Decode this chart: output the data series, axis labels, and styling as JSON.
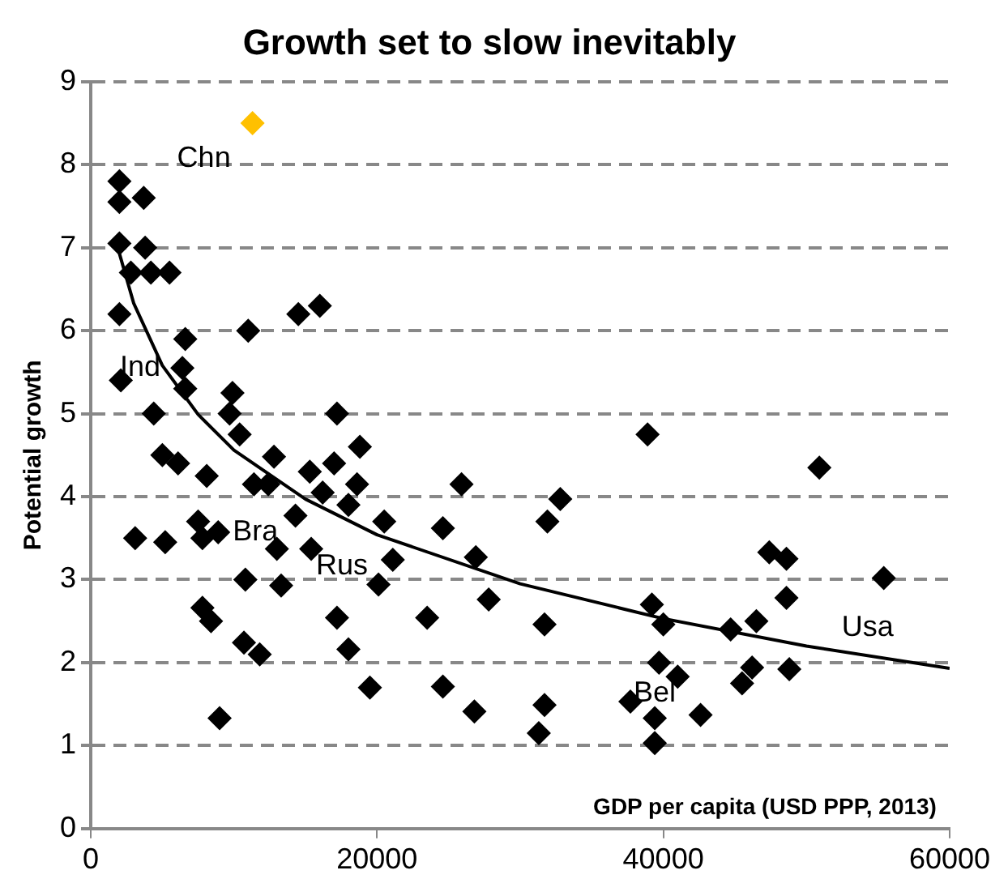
{
  "chart_data": {
    "type": "scatter",
    "title": "Growth set to slow inevitably",
    "xlabel": "GDP per capita (USD PPP, 2013)",
    "ylabel": "Potential growth",
    "xlim": [
      0,
      60000
    ],
    "xticks": [
      0,
      20000,
      40000,
      60000
    ],
    "ylim": [
      0,
      9
    ],
    "yticks": [
      0,
      1,
      2,
      3,
      4,
      5,
      6,
      7,
      8,
      9
    ],
    "grid": "y",
    "legend": false,
    "marker": "diamond",
    "annotations": [
      {
        "text": "Chn",
        "x": 11300,
        "y": 8.5
      },
      {
        "text": "Ind",
        "x": 2100,
        "y": 5.4
      },
      {
        "text": "Bra",
        "x": 8900,
        "y": 3.57
      },
      {
        "text": "Rus",
        "x": 15400,
        "y": 3.37
      },
      {
        "text": "Usa",
        "x": 55400,
        "y": 3.02
      },
      {
        "text": "Bel",
        "x": 39400,
        "y": 1.33
      }
    ],
    "series": [
      {
        "type": "scatter",
        "color": "#000000",
        "x": [
          2000,
          2000,
          3700,
          2000,
          3800,
          2800,
          4200,
          5500,
          2000,
          11000,
          14500,
          16000,
          6600,
          2100,
          6400,
          6600,
          9900,
          4400,
          9700,
          17200,
          10400,
          18800,
          5000,
          6100,
          12800,
          8100,
          15300,
          17000,
          11400,
          12400,
          18600,
          16200,
          18000,
          14300,
          3100,
          5200,
          7500,
          7800,
          8900,
          13000,
          15400,
          10800,
          13300,
          7800,
          8400,
          17200,
          10700,
          11800,
          18000,
          19500,
          9000,
          20100,
          25900,
          32800,
          31900,
          20500,
          24600,
          21100,
          26900,
          27800,
          23500,
          31700,
          38900,
          24600,
          26800,
          31700,
          31300,
          37700,
          50900,
          47400,
          48600,
          55400,
          48600,
          39200,
          40000,
          44700,
          46500,
          39700,
          41000,
          46200,
          45500,
          48800,
          39400,
          42600,
          39400
        ],
        "values": [
          7.8,
          7.55,
          7.6,
          7.05,
          7.0,
          6.7,
          6.7,
          6.7,
          6.2,
          6.0,
          6.2,
          6.3,
          5.9,
          5.4,
          5.55,
          5.3,
          5.25,
          5.0,
          5.0,
          5.0,
          4.75,
          4.6,
          4.5,
          4.4,
          4.48,
          4.25,
          4.3,
          4.4,
          4.15,
          4.15,
          4.15,
          4.05,
          3.9,
          3.77,
          3.5,
          3.45,
          3.7,
          3.5,
          3.57,
          3.37,
          3.37,
          3.0,
          2.93,
          2.66,
          2.5,
          2.54,
          2.24,
          2.1,
          2.16,
          1.7,
          1.33,
          2.94,
          4.15,
          3.97,
          3.7,
          3.7,
          3.62,
          3.24,
          3.27,
          2.76,
          2.54,
          2.46,
          4.75,
          1.71,
          1.41,
          1.49,
          1.15,
          1.53,
          4.35,
          3.33,
          3.25,
          3.02,
          2.78,
          2.7,
          2.46,
          2.4,
          2.5,
          2.0,
          1.83,
          1.94,
          1.75,
          1.92,
          1.33,
          1.37,
          1.03
        ]
      },
      {
        "type": "scatter",
        "color": "#ffc000",
        "x": [
          11300
        ],
        "values": [
          8.5
        ]
      },
      {
        "type": "line",
        "color": "#000000",
        "marker": "none",
        "x": [
          2000,
          3000,
          5000,
          7500,
          10000,
          15000,
          20000,
          30000,
          40000,
          50000,
          60000
        ],
        "values": [
          6.93,
          6.33,
          5.58,
          4.99,
          4.56,
          3.97,
          3.54,
          2.95,
          2.53,
          2.2,
          1.93
        ]
      }
    ]
  }
}
